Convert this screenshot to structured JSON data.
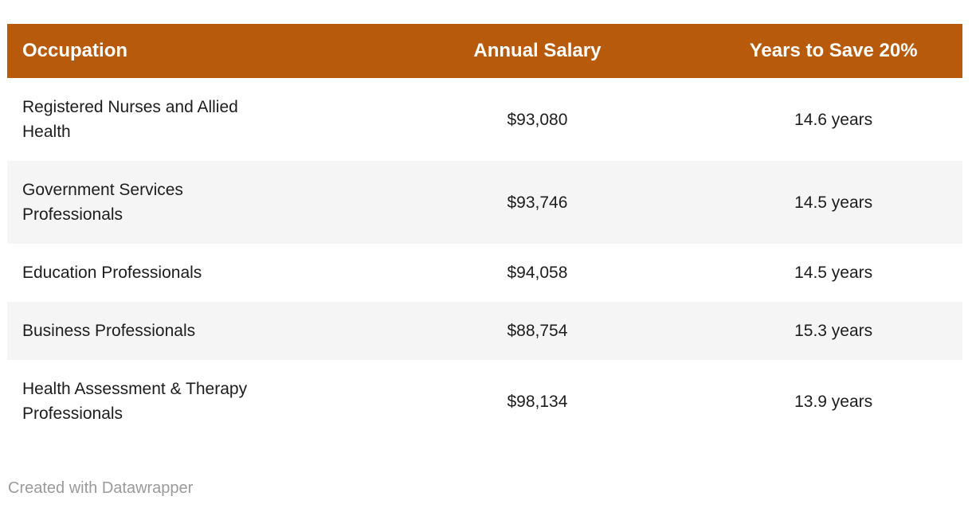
{
  "colors": {
    "header_bg": "#b75a0c",
    "header_text": "#ffffff",
    "body_text": "#1d1d1d",
    "stripe_bg": "#f5f5f5",
    "footer_text": "#9a9a9a"
  },
  "chart_data": {
    "type": "table",
    "columns": [
      {
        "label": "Occupation",
        "align": "left"
      },
      {
        "label": "Annual Salary",
        "align": "center"
      },
      {
        "label": "Years to Save 20%",
        "align": "center"
      }
    ],
    "rows": [
      {
        "occupation": "Registered Nurses and Allied Health",
        "occupation_lines": {
          "0": "Registered Nurses and Allied",
          "1": "Health"
        },
        "annual_salary": "$93,080",
        "annual_salary_value": 93080,
        "years_to_save": "14.6 years",
        "years_to_save_value": 14.6
      },
      {
        "occupation": "Government Services Professionals",
        "occupation_lines": {
          "0": "Government Services",
          "1": "Professionals"
        },
        "annual_salary": "$93,746",
        "annual_salary_value": 93746,
        "years_to_save": "14.5 years",
        "years_to_save_value": 14.5
      },
      {
        "occupation": "Education Professionals",
        "occupation_lines": {
          "0": "Education Professionals"
        },
        "annual_salary": "$94,058",
        "annual_salary_value": 94058,
        "years_to_save": "14.5 years",
        "years_to_save_value": 14.5
      },
      {
        "occupation": "Business Professionals",
        "occupation_lines": {
          "0": "Business Professionals"
        },
        "annual_salary": "$88,754",
        "annual_salary_value": 88754,
        "years_to_save": "15.3 years",
        "years_to_save_value": 15.3
      },
      {
        "occupation": "Health Assessment & Therapy Professionals",
        "occupation_lines": {
          "0": "Health Assessment & Therapy",
          "1": "Professionals"
        },
        "annual_salary": "$98,134",
        "annual_salary_value": 98134,
        "years_to_save": "13.9 years",
        "years_to_save_value": 13.9
      }
    ]
  },
  "footer": {
    "attribution": "Created with Datawrapper"
  }
}
